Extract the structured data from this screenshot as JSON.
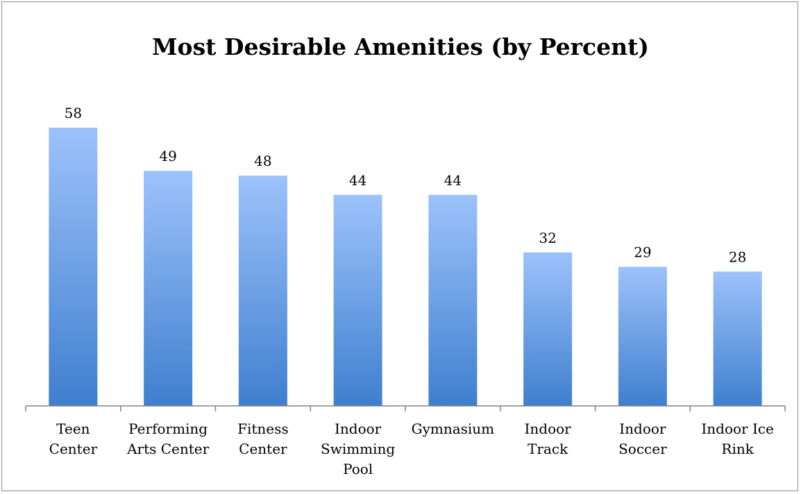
{
  "chart_data": {
    "type": "bar",
    "title": "Most Desirable Amenities (by Percent)",
    "xlabel": "",
    "ylabel": "",
    "categories": [
      [
        "Teen",
        "Center"
      ],
      [
        "Performing",
        "Arts Center"
      ],
      [
        "Fitness",
        "Center"
      ],
      [
        "Indoor",
        "Swimming",
        "Pool"
      ],
      [
        "Gymnasium"
      ],
      [
        "Indoor",
        "Track"
      ],
      [
        "Indoor",
        "Soccer"
      ],
      [
        "Indoor Ice",
        "Rink"
      ]
    ],
    "values": [
      58,
      49,
      48,
      44,
      44,
      32,
      29,
      28
    ],
    "ylim": [
      0,
      58
    ],
    "grid": false,
    "legend": "none",
    "data_labels": true,
    "colors": {
      "bar_top": "#9cc2fb",
      "bar_bottom": "#3f7fcf",
      "axis": "#808080"
    }
  }
}
